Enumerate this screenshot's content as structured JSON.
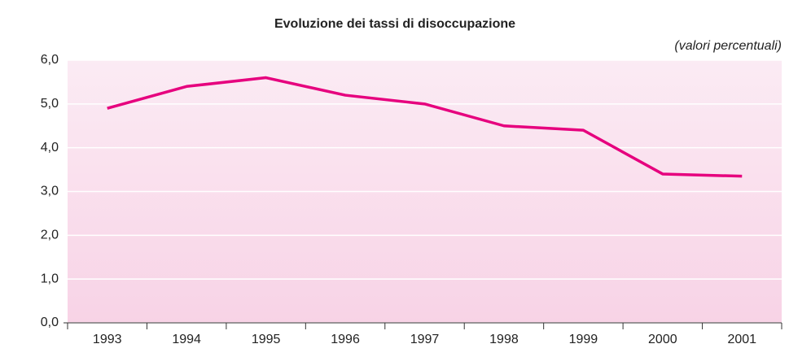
{
  "chart_data": {
    "type": "line",
    "title": "Evoluzione dei tassi di disoccupazione",
    "subtitle": "(valori percentuali)",
    "categories": [
      "1993",
      "1994",
      "1995",
      "1996",
      "1997",
      "1998",
      "1999",
      "2000",
      "2001"
    ],
    "values": [
      4.9,
      5.4,
      5.6,
      5.2,
      5.0,
      4.5,
      4.4,
      3.4,
      3.35
    ],
    "color": "#e6007e",
    "ylim": [
      0,
      6
    ],
    "yticks": [
      {
        "value": 0,
        "label": "0,0"
      },
      {
        "value": 1,
        "label": "1,0"
      },
      {
        "value": 2,
        "label": "2,0"
      },
      {
        "value": 3,
        "label": "3,0"
      },
      {
        "value": 4,
        "label": "4,0"
      },
      {
        "value": 5,
        "label": "5,0"
      },
      {
        "value": 6,
        "label": "6,0"
      }
    ],
    "grid": true
  }
}
